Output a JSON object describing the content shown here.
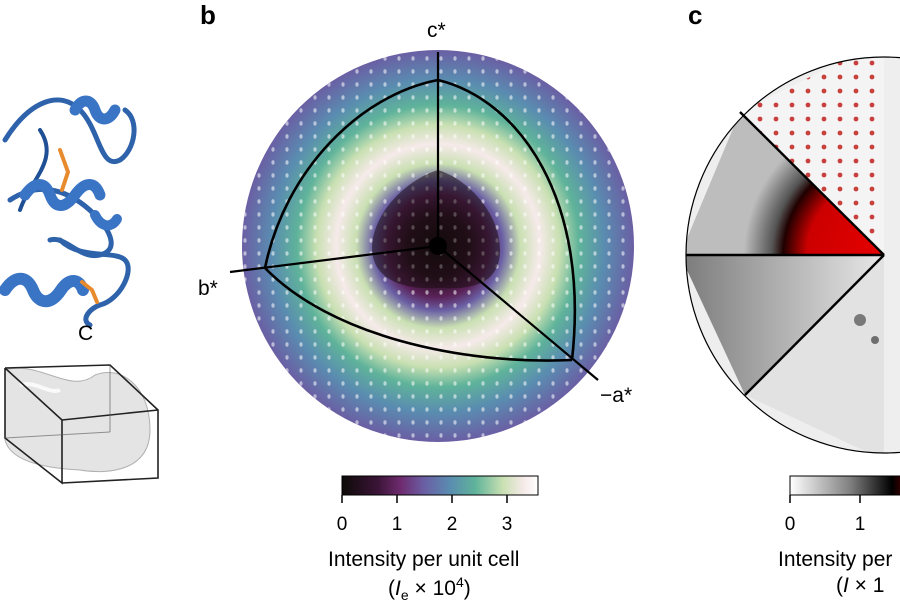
{
  "panels": {
    "b": {
      "letter": "b",
      "axes": {
        "c": "c*",
        "b": "b*",
        "a": "−a*"
      },
      "colorbar": {
        "ticks": [
          "0",
          "1",
          "2",
          "3"
        ],
        "title": "Intensity per unit cell",
        "unit_sym": "I",
        "unit_sub": "e",
        "unit_mult": " × 10",
        "unit_exp": "4"
      },
      "colors": [
        "#0d0a08",
        "#3a1436",
        "#6e2b6e",
        "#6a5fa4",
        "#5a8cb0",
        "#5fb39a",
        "#c9e0b2",
        "#f6eaea",
        "#ffffff"
      ]
    },
    "c": {
      "letter": "c",
      "colorbar": {
        "ticks": [
          "0",
          "1"
        ],
        "title": "Intensity per",
        "unit_prefix": "(",
        "unit_sym": "I",
        "unit_mult": " × 1"
      },
      "colors": [
        "#ffffff",
        "#808080",
        "#000000",
        "#cc0000"
      ]
    },
    "a": {
      "c_terminus_label": "C",
      "protein_color": "#3a74c4",
      "disulfide_color": "#e88a2e"
    }
  }
}
